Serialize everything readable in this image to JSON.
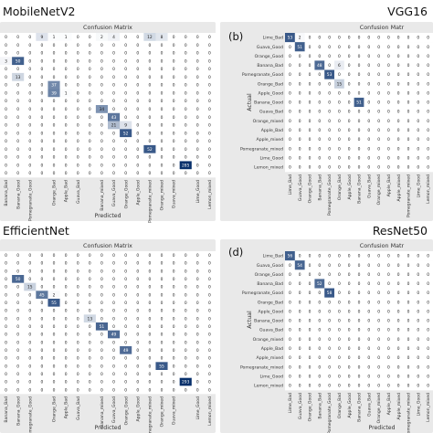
{
  "colors": {
    "panel_background": "#e9e9e9",
    "cmap_low": "#ffffff",
    "cmap_high": "#08306b",
    "text_dark": "#222222",
    "text_light": "#ffffff"
  },
  "chart_data": [
    {
      "type": "heatmap",
      "panel_label": "",
      "model_title": "MobileNetV2",
      "title": "Confusion Matrix",
      "xlabel": "Predicted",
      "ylabel": "",
      "categories": [
        "Banana_Bad",
        "Banana_Good",
        "Pomegranate_Good",
        "",
        "Orange_Bad",
        "Apple_Bad",
        "Guava_Bad",
        "",
        "Banana_mixed",
        "Guava_Good",
        "Orange_Good",
        "Apple_Good",
        "Pomegranate_mixed",
        "Orange_mixed",
        "Guava_mixed",
        "",
        "Lime_Good",
        "Lemon_mixed"
      ],
      "matrix": [
        [
          0,
          0,
          0,
          9,
          1,
          1,
          0,
          0,
          2,
          4,
          0,
          0,
          12,
          8,
          0,
          0,
          0,
          0
        ],
        [
          0,
          0,
          0,
          0,
          0,
          0,
          0,
          0,
          0,
          0,
          0,
          0,
          0,
          0,
          0,
          0,
          0,
          0
        ],
        [
          0,
          0,
          0,
          0,
          0,
          0,
          0,
          0,
          0,
          0,
          0,
          0,
          0,
          0,
          0,
          0,
          0,
          0
        ],
        [
          3,
          50,
          0,
          0,
          0,
          0,
          0,
          0,
          0,
          0,
          0,
          0,
          0,
          0,
          0,
          0,
          0,
          0
        ],
        [
          0,
          0,
          0,
          0,
          0,
          0,
          0,
          0,
          0,
          0,
          0,
          0,
          0,
          0,
          0,
          0,
          0,
          0
        ],
        [
          0,
          13,
          0,
          0,
          0,
          0,
          0,
          0,
          0,
          0,
          0,
          0,
          0,
          0,
          0,
          0,
          0,
          0
        ],
        [
          0,
          0,
          0,
          0,
          37,
          0,
          0,
          0,
          0,
          0,
          0,
          0,
          0,
          0,
          0,
          0,
          0,
          0
        ],
        [
          0,
          0,
          0,
          0,
          39,
          1,
          0,
          0,
          0,
          0,
          0,
          0,
          0,
          0,
          0,
          0,
          0,
          0
        ],
        [
          0,
          0,
          0,
          0,
          0,
          0,
          0,
          0,
          0,
          0,
          0,
          0,
          0,
          0,
          0,
          0,
          0,
          0
        ],
        [
          0,
          0,
          0,
          0,
          0,
          0,
          0,
          0,
          34,
          0,
          0,
          0,
          0,
          0,
          0,
          0,
          0,
          0
        ],
        [
          0,
          0,
          0,
          0,
          0,
          0,
          0,
          0,
          0,
          43,
          0,
          0,
          0,
          0,
          0,
          0,
          0,
          0
        ],
        [
          0,
          0,
          0,
          0,
          0,
          0,
          0,
          0,
          0,
          21,
          9,
          0,
          0,
          0,
          0,
          0,
          0,
          0
        ],
        [
          0,
          0,
          0,
          0,
          0,
          0,
          0,
          0,
          0,
          0,
          52,
          0,
          0,
          0,
          0,
          0,
          0,
          0
        ],
        [
          0,
          0,
          0,
          0,
          0,
          0,
          0,
          0,
          0,
          0,
          0,
          0,
          0,
          0,
          0,
          0,
          0,
          0
        ],
        [
          0,
          0,
          0,
          0,
          0,
          0,
          0,
          0,
          0,
          0,
          0,
          0,
          52,
          0,
          0,
          0,
          0,
          0
        ],
        [
          0,
          0,
          0,
          0,
          0,
          0,
          0,
          0,
          0,
          0,
          0,
          0,
          0,
          0,
          0,
          0,
          0,
          0
        ],
        [
          0,
          0,
          0,
          0,
          0,
          0,
          0,
          0,
          0,
          0,
          0,
          0,
          0,
          0,
          0,
          285,
          0,
          0
        ],
        [
          0,
          0,
          0,
          0,
          0,
          0,
          0,
          0,
          0,
          0,
          0,
          0,
          0,
          0,
          0,
          0,
          0,
          0
        ]
      ]
    },
    {
      "type": "heatmap",
      "panel_label": "(b)",
      "model_title": "VGG16",
      "title": "Confusion Matr",
      "xlabel": "",
      "ylabel": "Actual",
      "categories": [
        "Lime_Bad",
        "Guava_Good",
        "Orange_Good",
        "Banana_Bad",
        "Pomegranate_Good",
        "Orange_Bad",
        "Apple_Good",
        "Banana_Good",
        "Guava_Bad",
        "Orange_mixed",
        "Apple_Bad",
        "Apple_mixed",
        "Pomegranate_mixed",
        "Lime_Good",
        "Lemon_mixed"
      ],
      "matrix": [
        [
          53,
          2,
          0,
          0,
          0,
          0,
          0,
          0,
          0,
          0,
          0,
          0,
          0,
          0,
          0
        ],
        [
          0,
          51,
          0,
          0,
          0,
          0,
          0,
          0,
          0,
          0,
          0,
          0,
          0,
          0,
          0
        ],
        [
          0,
          0,
          0,
          0,
          0,
          0,
          0,
          0,
          0,
          0,
          0,
          0,
          0,
          0,
          0
        ],
        [
          0,
          0,
          0,
          48,
          0,
          6,
          0,
          0,
          0,
          0,
          0,
          0,
          0,
          0,
          0
        ],
        [
          0,
          0,
          0,
          0,
          53,
          0,
          0,
          0,
          0,
          0,
          0,
          0,
          0,
          0,
          0
        ],
        [
          0,
          0,
          0,
          0,
          0,
          15,
          0,
          0,
          0,
          0,
          0,
          0,
          0,
          0,
          0
        ],
        [
          0,
          0,
          0,
          0,
          0,
          0,
          0,
          0,
          0,
          0,
          0,
          0,
          0,
          0,
          0
        ],
        [
          0,
          0,
          0,
          0,
          0,
          0,
          0,
          51,
          0,
          0,
          0,
          0,
          0,
          0,
          0
        ],
        [
          0,
          0,
          0,
          0,
          0,
          0,
          0,
          0,
          0,
          0,
          0,
          0,
          0,
          0,
          0
        ],
        [
          0,
          0,
          0,
          0,
          0,
          0,
          0,
          0,
          0,
          0,
          0,
          0,
          0,
          0,
          0
        ],
        [
          0,
          0,
          0,
          0,
          0,
          0,
          0,
          0,
          0,
          0,
          0,
          0,
          0,
          0,
          0
        ],
        [
          0,
          0,
          0,
          0,
          0,
          0,
          0,
          0,
          0,
          0,
          0,
          0,
          0,
          0,
          0
        ],
        [
          0,
          0,
          0,
          0,
          0,
          0,
          0,
          0,
          0,
          0,
          0,
          0,
          0,
          0,
          0
        ],
        [
          0,
          0,
          0,
          0,
          0,
          0,
          0,
          0,
          0,
          0,
          0,
          0,
          0,
          0,
          0
        ],
        [
          0,
          0,
          0,
          0,
          0,
          0,
          0,
          0,
          0,
          0,
          0,
          0,
          0,
          0,
          0
        ]
      ]
    },
    {
      "type": "heatmap",
      "panel_label": "",
      "model_title": "EfficientNet",
      "title": "Confusion Matrix",
      "xlabel": "Predicted",
      "ylabel": "",
      "categories": [
        "Banana_Bad",
        "Banana_Good",
        "Pomegranate_Good",
        "",
        "Orange_Bad",
        "Apple_Bad",
        "Guava_Bad",
        "",
        "Banana_mixed",
        "Guava_Good",
        "Orange_Good",
        "Apple_Good",
        "Pomegranate_mixed",
        "Orange_mixed",
        "Guava_mixed",
        "",
        "Lime_Good",
        "Lemon_mixed"
      ],
      "matrix": [
        [
          0,
          0,
          0,
          0,
          0,
          0,
          0,
          0,
          0,
          0,
          0,
          0,
          0,
          0,
          0,
          0,
          0,
          0
        ],
        [
          0,
          0,
          0,
          0,
          0,
          0,
          0,
          0,
          0,
          0,
          0,
          0,
          0,
          0,
          0,
          0,
          0,
          0
        ],
        [
          0,
          0,
          0,
          0,
          0,
          0,
          0,
          0,
          0,
          0,
          0,
          0,
          0,
          0,
          0,
          0,
          0,
          0
        ],
        [
          0,
          50,
          0,
          0,
          0,
          0,
          0,
          0,
          0,
          0,
          0,
          0,
          0,
          0,
          0,
          0,
          0,
          0
        ],
        [
          0,
          0,
          15,
          0,
          0,
          0,
          0,
          0,
          0,
          0,
          0,
          0,
          0,
          0,
          0,
          0,
          0,
          0
        ],
        [
          0,
          0,
          0,
          45,
          2,
          0,
          0,
          0,
          0,
          0,
          0,
          0,
          0,
          0,
          0,
          0,
          0,
          0
        ],
        [
          0,
          0,
          0,
          0,
          55,
          0,
          0,
          0,
          0,
          0,
          0,
          0,
          0,
          0,
          0,
          0,
          0,
          0
        ],
        [
          0,
          0,
          0,
          0,
          0,
          0,
          0,
          0,
          0,
          0,
          0,
          0,
          0,
          0,
          0,
          0,
          0,
          0
        ],
        [
          0,
          0,
          0,
          0,
          0,
          0,
          0,
          13,
          0,
          0,
          0,
          0,
          0,
          0,
          0,
          0,
          0,
          0
        ],
        [
          0,
          0,
          0,
          0,
          0,
          0,
          0,
          0,
          51,
          0,
          0,
          0,
          0,
          0,
          0,
          0,
          0,
          0
        ],
        [
          0,
          0,
          0,
          0,
          0,
          0,
          0,
          0,
          0,
          49,
          0,
          0,
          0,
          0,
          0,
          0,
          0,
          0
        ],
        [
          0,
          0,
          0,
          0,
          0,
          0,
          0,
          0,
          0,
          0,
          0,
          0,
          0,
          0,
          0,
          0,
          0,
          0
        ],
        [
          0,
          0,
          0,
          0,
          0,
          0,
          0,
          0,
          0,
          0,
          49,
          0,
          0,
          0,
          0,
          0,
          0,
          0
        ],
        [
          0,
          0,
          0,
          0,
          0,
          0,
          0,
          0,
          0,
          0,
          0,
          0,
          0,
          0,
          0,
          0,
          0,
          0
        ],
        [
          0,
          0,
          0,
          0,
          0,
          0,
          0,
          0,
          0,
          0,
          0,
          0,
          0,
          55,
          0,
          0,
          0,
          0
        ],
        [
          0,
          0,
          0,
          0,
          0,
          0,
          0,
          0,
          0,
          0,
          0,
          0,
          0,
          0,
          0,
          0,
          0,
          0
        ],
        [
          0,
          0,
          0,
          0,
          0,
          0,
          0,
          0,
          0,
          0,
          0,
          0,
          0,
          0,
          0,
          293,
          0,
          0
        ],
        [
          0,
          0,
          0,
          0,
          0,
          0,
          0,
          0,
          0,
          0,
          0,
          0,
          0,
          0,
          0,
          0,
          0,
          0
        ]
      ]
    },
    {
      "type": "heatmap",
      "panel_label": "(d)",
      "model_title": "ResNet50",
      "title": "Confusion Matr",
      "xlabel": "Predicted",
      "ylabel": "Actual",
      "categories": [
        "Lime_Bad",
        "Guava_Good",
        "Orange_Good",
        "Banana_Bad",
        "Pomegranate_Good",
        "Orange_Bad",
        "Apple_Good",
        "Banana_Good",
        "Guava_Bad",
        "Orange_mixed",
        "Apple_Bad",
        "Apple_mixed",
        "Pomegranate_mixed",
        "Lime_Good",
        "Lemon_mixed"
      ],
      "matrix": [
        [
          56,
          0,
          0,
          0,
          0,
          0,
          0,
          0,
          0,
          0,
          0,
          0,
          0,
          0,
          0
        ],
        [
          0,
          54,
          0,
          0,
          0,
          0,
          0,
          0,
          0,
          0,
          0,
          0,
          0,
          0,
          0
        ],
        [
          0,
          0,
          0,
          0,
          0,
          0,
          0,
          0,
          0,
          0,
          0,
          0,
          0,
          0,
          0
        ],
        [
          0,
          0,
          0,
          52,
          0,
          0,
          0,
          0,
          0,
          0,
          0,
          0,
          0,
          0,
          0
        ],
        [
          0,
          0,
          0,
          0,
          58,
          0,
          0,
          0,
          0,
          0,
          0,
          0,
          0,
          0,
          0
        ],
        [
          0,
          0,
          0,
          0,
          0,
          0,
          0,
          0,
          0,
          0,
          0,
          0,
          0,
          0,
          0
        ],
        [
          0,
          0,
          0,
          0,
          0,
          0,
          0,
          0,
          0,
          0,
          0,
          0,
          0,
          0,
          0
        ],
        [
          0,
          0,
          0,
          0,
          0,
          0,
          0,
          0,
          0,
          0,
          0,
          0,
          0,
          0,
          0
        ],
        [
          0,
          0,
          0,
          0,
          0,
          0,
          0,
          0,
          0,
          0,
          0,
          0,
          0,
          0,
          0
        ],
        [
          0,
          0,
          0,
          0,
          0,
          0,
          0,
          0,
          0,
          0,
          0,
          0,
          0,
          0,
          0
        ],
        [
          0,
          0,
          0,
          0,
          0,
          0,
          0,
          0,
          0,
          0,
          0,
          0,
          0,
          0,
          0
        ],
        [
          0,
          0,
          0,
          0,
          0,
          0,
          0,
          0,
          0,
          0,
          0,
          0,
          0,
          0,
          0
        ],
        [
          0,
          0,
          0,
          0,
          0,
          0,
          0,
          0,
          0,
          0,
          0,
          0,
          0,
          0,
          0
        ],
        [
          0,
          0,
          0,
          0,
          0,
          0,
          0,
          0,
          0,
          0,
          0,
          0,
          0,
          0,
          0
        ],
        [
          0,
          0,
          0,
          0,
          0,
          0,
          0,
          0,
          0,
          0,
          0,
          0,
          0,
          0,
          0
        ]
      ]
    }
  ]
}
